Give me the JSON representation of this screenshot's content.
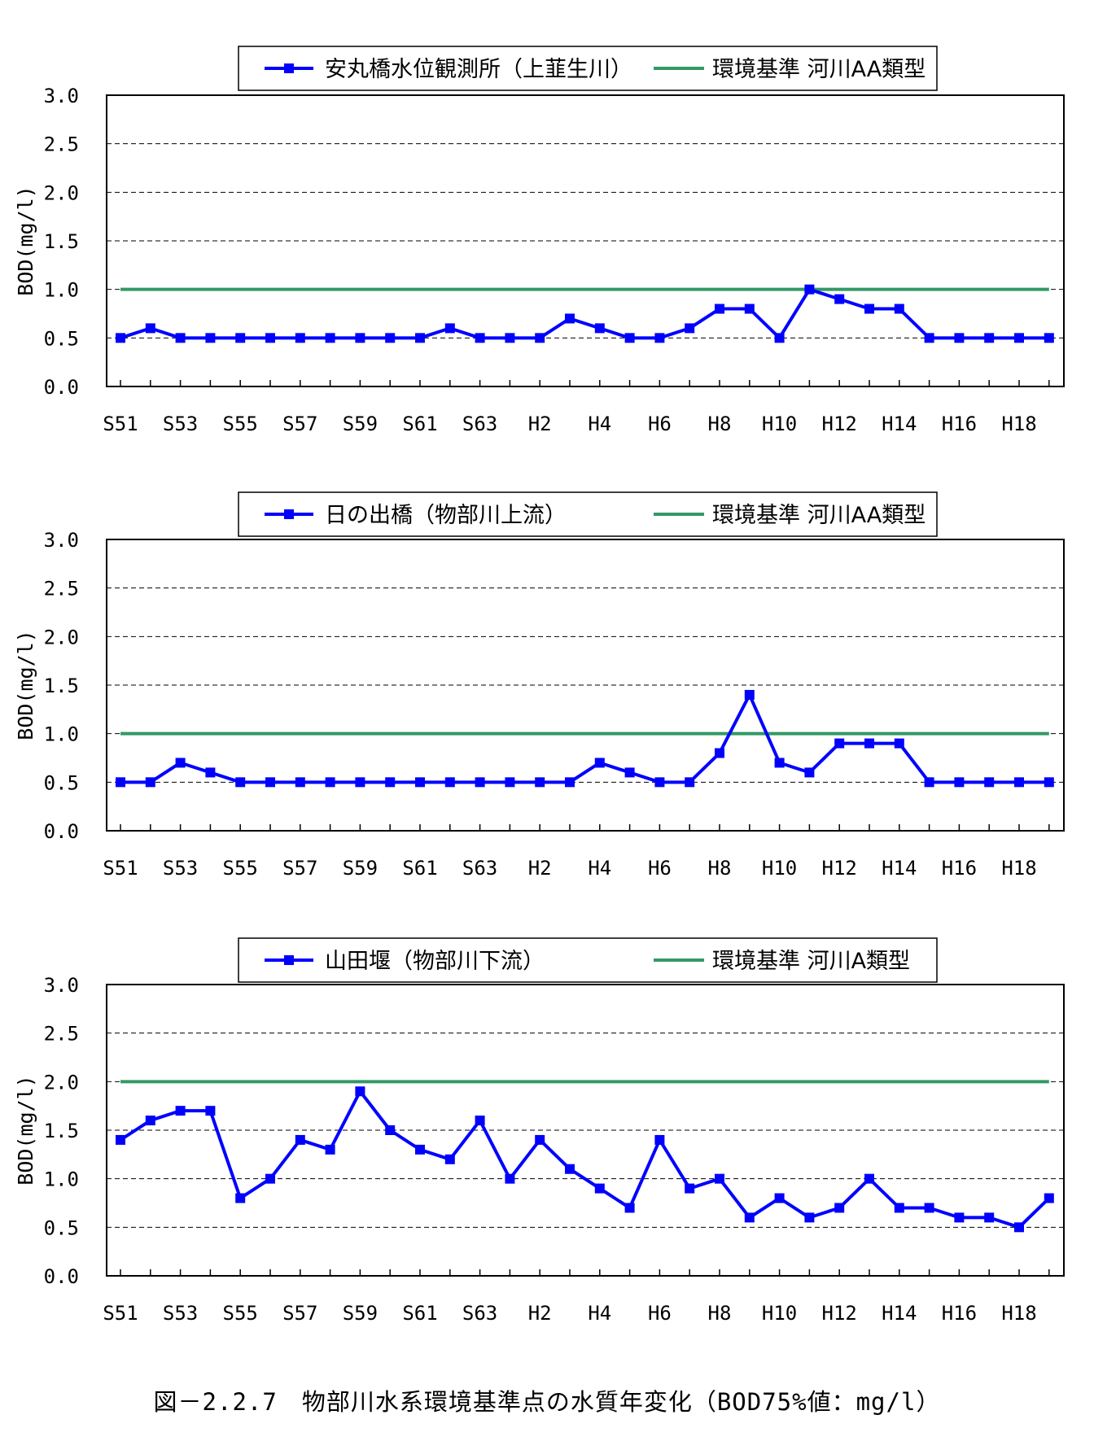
{
  "caption": "図－2.2.7　物部川水系環境基準点の水質年変化（BOD75%値：mg/l）",
  "colors": {
    "series": "#0000ff",
    "standard": "#339966",
    "grid": "#000000"
  },
  "chart_data": [
    {
      "type": "line",
      "ylabel": "BOD(mg/l)",
      "ylim": [
        0,
        3.0
      ],
      "yticks": [
        "0.0",
        "0.5",
        "1.0",
        "1.5",
        "2.0",
        "2.5",
        "3.0"
      ],
      "x": [
        "S51",
        "S52",
        "S53",
        "S54",
        "S55",
        "S56",
        "S57",
        "S58",
        "S59",
        "S60",
        "S61",
        "S62",
        "S63",
        "H1",
        "H2",
        "H3",
        "H4",
        "H5",
        "H6",
        "H7",
        "H8",
        "H9",
        "H10",
        "H11",
        "H12",
        "H13",
        "H14",
        "H15",
        "H16",
        "H17",
        "H18",
        "H19"
      ],
      "xtick_labels": [
        "S51",
        "S53",
        "S55",
        "S57",
        "S59",
        "S61",
        "S63",
        "H2",
        "H4",
        "H6",
        "H8",
        "H10",
        "H12",
        "H14",
        "H16",
        "H18"
      ],
      "grid": "dashed-horizontal",
      "legend_position": "top-center",
      "series": [
        {
          "name": "安丸橋水位観測所（上韮生川）",
          "marker": "square",
          "values": [
            0.5,
            0.6,
            0.5,
            0.5,
            0.5,
            0.5,
            0.5,
            0.5,
            0.5,
            0.5,
            0.5,
            0.6,
            0.5,
            0.5,
            0.5,
            0.7,
            0.6,
            0.5,
            0.5,
            0.6,
            0.8,
            0.8,
            0.5,
            1.0,
            0.9,
            0.8,
            0.8,
            0.5,
            0.5,
            0.5,
            0.5,
            0.5
          ]
        },
        {
          "name": "環境基準 河川AA類型",
          "marker": "none",
          "constant": 1.0
        }
      ]
    },
    {
      "type": "line",
      "ylabel": "BOD(mg/l)",
      "ylim": [
        0,
        3.0
      ],
      "yticks": [
        "0.0",
        "0.5",
        "1.0",
        "1.5",
        "2.0",
        "2.5",
        "3.0"
      ],
      "x": [
        "S51",
        "S52",
        "S53",
        "S54",
        "S55",
        "S56",
        "S57",
        "S58",
        "S59",
        "S60",
        "S61",
        "S62",
        "S63",
        "H1",
        "H2",
        "H3",
        "H4",
        "H5",
        "H6",
        "H7",
        "H8",
        "H9",
        "H10",
        "H11",
        "H12",
        "H13",
        "H14",
        "H15",
        "H16",
        "H17",
        "H18",
        "H19"
      ],
      "xtick_labels": [
        "S51",
        "S53",
        "S55",
        "S57",
        "S59",
        "S61",
        "S63",
        "H2",
        "H4",
        "H6",
        "H8",
        "H10",
        "H12",
        "H14",
        "H16",
        "H18"
      ],
      "grid": "dashed-horizontal",
      "legend_position": "top-center",
      "series": [
        {
          "name": "日の出橋（物部川上流）",
          "marker": "square",
          "values": [
            0.5,
            0.5,
            0.7,
            0.6,
            0.5,
            0.5,
            0.5,
            0.5,
            0.5,
            0.5,
            0.5,
            0.5,
            0.5,
            0.5,
            0.5,
            0.5,
            0.7,
            0.6,
            0.5,
            0.5,
            0.8,
            1.4,
            0.7,
            0.6,
            0.9,
            0.9,
            0.9,
            0.5,
            0.5,
            0.5,
            0.5,
            0.5
          ]
        },
        {
          "name": "環境基準 河川AA類型",
          "marker": "none",
          "constant": 1.0
        }
      ]
    },
    {
      "type": "line",
      "ylabel": "BOD(mg/l)",
      "ylim": [
        0,
        3.0
      ],
      "yticks": [
        "0.0",
        "0.5",
        "1.0",
        "1.5",
        "2.0",
        "2.5",
        "3.0"
      ],
      "x": [
        "S51",
        "S52",
        "S53",
        "S54",
        "S55",
        "S56",
        "S57",
        "S58",
        "S59",
        "S60",
        "S61",
        "S62",
        "S63",
        "H1",
        "H2",
        "H3",
        "H4",
        "H5",
        "H6",
        "H7",
        "H8",
        "H9",
        "H10",
        "H11",
        "H12",
        "H13",
        "H14",
        "H15",
        "H16",
        "H17",
        "H18",
        "H19"
      ],
      "xtick_labels": [
        "S51",
        "S53",
        "S55",
        "S57",
        "S59",
        "S61",
        "S63",
        "H2",
        "H4",
        "H6",
        "H8",
        "H10",
        "H12",
        "H14",
        "H16",
        "H18"
      ],
      "grid": "dashed-horizontal",
      "legend_position": "top-center",
      "series": [
        {
          "name": "山田堰（物部川下流）",
          "marker": "square",
          "values": [
            1.4,
            1.6,
            1.7,
            1.7,
            0.8,
            1.0,
            1.4,
            1.3,
            1.9,
            1.5,
            1.3,
            1.2,
            1.6,
            1.0,
            1.4,
            1.1,
            0.9,
            0.7,
            1.4,
            0.9,
            1.0,
            0.6,
            0.8,
            0.6,
            0.7,
            1.0,
            0.7,
            0.7,
            0.6,
            0.6,
            0.5,
            0.8
          ]
        },
        {
          "name": "環境基準 河川A類型",
          "marker": "none",
          "constant": 2.0
        }
      ]
    }
  ]
}
